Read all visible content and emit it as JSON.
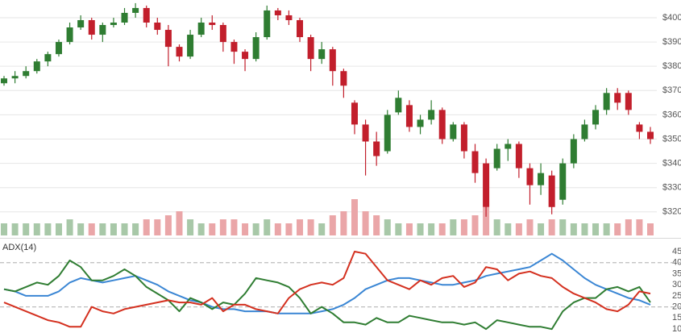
{
  "chart_data": [
    {
      "type": "candlestick",
      "open": [
        373,
        375,
        376,
        378,
        382,
        385,
        390,
        396,
        399,
        393,
        397,
        398,
        402,
        404,
        398,
        395,
        388,
        384,
        393,
        398,
        397,
        390,
        386,
        383,
        392,
        403,
        401,
        399,
        392,
        383,
        387,
        378,
        365,
        356,
        349,
        345,
        361,
        364,
        355,
        358,
        362,
        350,
        356,
        345,
        340,
        338,
        346,
        348,
        338,
        331,
        335,
        325,
        340,
        350,
        356,
        362,
        369,
        369,
        356,
        353
      ],
      "high": [
        376,
        378,
        380,
        383,
        386,
        391,
        398,
        401,
        400,
        398,
        400,
        404,
        406,
        405,
        400,
        397,
        389,
        395,
        400,
        401,
        398,
        391,
        387,
        394,
        405,
        404,
        403,
        400,
        393,
        390,
        388,
        379,
        366,
        358,
        353,
        362,
        370,
        366,
        360,
        366,
        363,
        357,
        357,
        348,
        342,
        348,
        350,
        349,
        340,
        340,
        337,
        342,
        352,
        358,
        364,
        371,
        371,
        370,
        357,
        355
      ],
      "low": [
        372,
        373,
        375,
        377,
        380,
        384,
        389,
        395,
        391,
        390,
        396,
        397,
        400,
        396,
        393,
        380,
        382,
        383,
        392,
        395,
        386,
        381,
        378,
        382,
        391,
        399,
        397,
        390,
        378,
        381,
        372,
        367,
        352,
        335,
        339,
        344,
        360,
        353,
        352,
        356,
        348,
        349,
        342,
        332,
        318,
        337,
        341,
        334,
        323,
        327,
        319,
        323,
        338,
        349,
        354,
        360,
        362,
        360,
        350,
        348
      ],
      "close": [
        375,
        376,
        378,
        382,
        385,
        390,
        396,
        399,
        393,
        397,
        398,
        402,
        404,
        398,
        395,
        388,
        384,
        393,
        398,
        397,
        390,
        386,
        383,
        392,
        403,
        401,
        399,
        392,
        383,
        387,
        378,
        372,
        356,
        349,
        343,
        360,
        367,
        355,
        358,
        362,
        350,
        356,
        345,
        336,
        322,
        346,
        348,
        338,
        331,
        336,
        322,
        340,
        350,
        356,
        362,
        369,
        365,
        362,
        353,
        350
      ],
      "volume": [
        3,
        3,
        3,
        3,
        3,
        3,
        4,
        3,
        3,
        3,
        3,
        3,
        3,
        4,
        4,
        5,
        6,
        4,
        3,
        3,
        4,
        4,
        3,
        3,
        4,
        3,
        3,
        4,
        4,
        3,
        5,
        6,
        9,
        6,
        5,
        4,
        3,
        3,
        3,
        3,
        3,
        4,
        4,
        5,
        7,
        4,
        3,
        3,
        4,
        3,
        4,
        4,
        3,
        3,
        3,
        3,
        3,
        4,
        4,
        3
      ],
      "up_color": "#2f7d32",
      "down_color": "#c21f2c",
      "up_volume_color": "#a8c8a8",
      "down_volume_color": "#eaa6a8",
      "ylim": [
        310.3,
        407.3
      ],
      "yticks": [
        {
          "value": 320,
          "label": "$320"
        },
        {
          "value": 330,
          "label": "$330"
        },
        {
          "value": 340,
          "label": "$340"
        },
        {
          "value": 350,
          "label": "$350"
        },
        {
          "value": 360,
          "label": "$360"
        },
        {
          "value": 370,
          "label": "$370"
        },
        {
          "value": 380,
          "label": "$380"
        },
        {
          "value": 390,
          "label": "$390"
        },
        {
          "value": 400,
          "label": "$400"
        }
      ],
      "grid": true
    },
    {
      "type": "line",
      "title": "ADX(14)",
      "series": [
        {
          "color": "#3a86d4",
          "values": [
            28,
            27,
            25,
            25,
            25,
            27,
            31,
            33,
            32,
            31,
            32,
            33,
            34,
            32,
            30,
            27,
            25,
            23,
            22,
            20,
            19,
            19,
            18,
            18,
            18,
            17,
            17,
            17,
            17,
            18,
            19,
            21,
            24,
            28,
            30,
            32,
            33,
            33,
            32,
            31,
            30,
            30,
            31,
            32,
            34,
            35,
            36,
            37,
            38,
            41,
            44,
            41,
            37,
            33,
            30,
            28,
            26,
            24,
            23,
            21
          ]
        },
        {
          "color": "#2f7d32",
          "values": [
            28,
            27,
            29,
            31,
            30,
            34,
            41,
            38,
            32,
            32,
            34,
            37,
            34,
            29,
            26,
            23,
            18,
            24,
            22,
            19,
            22,
            21,
            26,
            33,
            32,
            31,
            29,
            24,
            17,
            20,
            17,
            13,
            13,
            12,
            15,
            13,
            13,
            16,
            15,
            14,
            13,
            13,
            12,
            13,
            10,
            14,
            13,
            12,
            11,
            11,
            10,
            18,
            22,
            24,
            24,
            28,
            29,
            27,
            29,
            22
          ]
        },
        {
          "color": "#d4301f",
          "values": [
            22,
            20,
            18,
            16,
            14,
            13,
            11,
            11,
            20,
            18,
            17,
            19,
            20,
            21,
            22,
            23,
            22,
            22,
            21,
            24,
            18,
            21,
            21,
            19,
            18,
            17,
            24,
            28,
            30,
            31,
            30,
            33,
            45,
            44,
            38,
            32,
            30,
            28,
            32,
            30,
            33,
            34,
            29,
            31,
            38,
            37,
            32,
            35,
            36,
            34,
            33,
            29,
            26,
            24,
            22,
            19,
            18,
            21,
            27,
            26
          ]
        }
      ],
      "ylim": [
        8.2,
        50.1
      ],
      "yticks": [
        10,
        15,
        20,
        25,
        30,
        35,
        40,
        45
      ],
      "reference_lines": [
        20,
        40
      ]
    }
  ]
}
